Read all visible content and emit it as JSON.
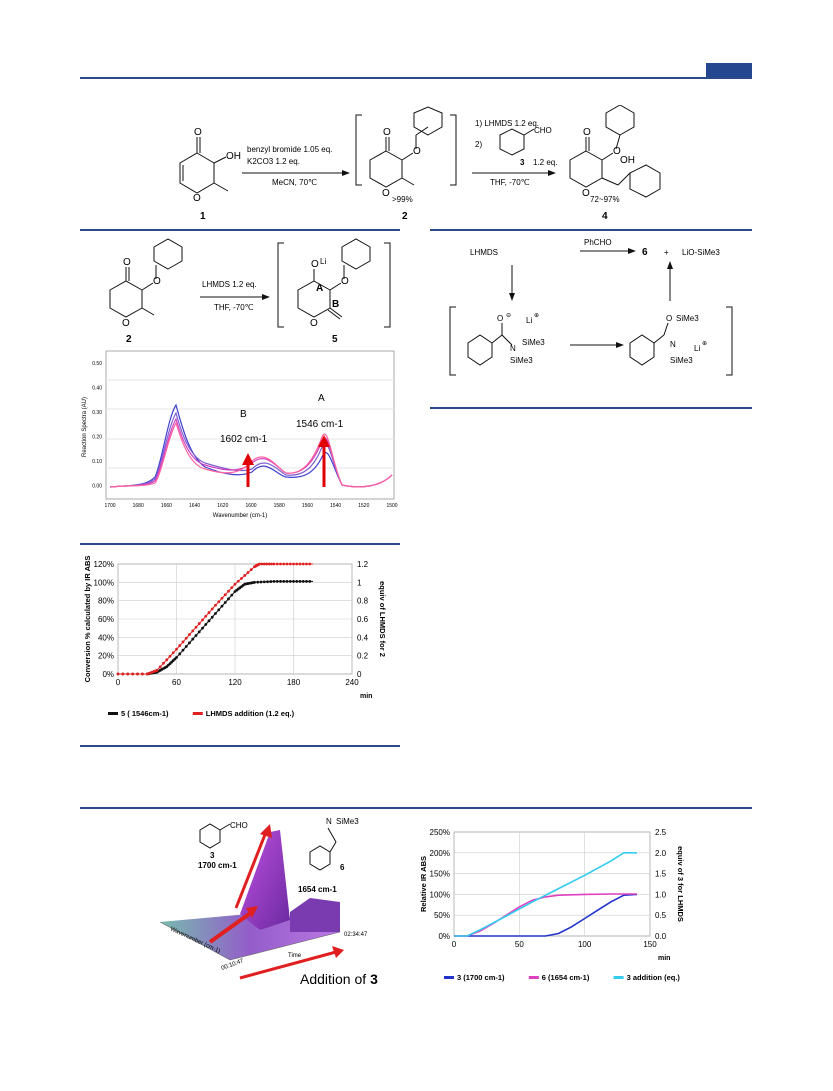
{
  "scheme1": {
    "reagent1_line1": "benzyl bromide 1.05 eq.",
    "reagent1_line2": "K2CO3 1.2 eq.",
    "reagent1_line3": "MeCN, 70℃",
    "reagent2_line1": "1) LHMDS 1.2 eq.",
    "reagent2_cho": "CHO",
    "reagent2_step2": "2)",
    "reagent2_line2a": "3",
    "reagent2_line2b": "1.2 eq.",
    "reagent2_line3": "THF, -70℃",
    "oh1": "OH",
    "oh2": "OH",
    "yield2": ">99%",
    "yield4": "72~97%",
    "cmpd1": "1",
    "cmpd2": "2",
    "cmpd4": "4"
  },
  "scheme2": {
    "reagent_line1": "LHMDS 1.2 eq.",
    "reagent_line2": "THF, -70℃",
    "cmpd2": "2",
    "cmpd5": "5",
    "li": "Li",
    "label_a": "A",
    "label_b": "B"
  },
  "mechanism": {
    "lhmds": "LHMDS",
    "phcho": "PhCHO",
    "product6": "6",
    "plus": "+",
    "byproduct": "LiO-SiMe3",
    "li_plus1": "Li",
    "li_plus2": "Li",
    "sime3_1": "SiMe3",
    "sime3_2": "SiMe3",
    "sime3_3": "SiMe3",
    "sime3_4": "SiMe3",
    "n1": "N",
    "n2": "N",
    "o1": "O",
    "o2": "O"
  },
  "ir_spectrum": {
    "xlabel": "Wavenumber (cm-1)",
    "ylabel": "Reaction Spectra (AU)",
    "peak_b_label": "B",
    "peak_b_value": "1602 cm-1",
    "peak_a_label": "A",
    "peak_a_value": "1546 cm-1",
    "xticks": [
      "1700",
      "1680",
      "1660",
      "1640",
      "1620",
      "1600",
      "1580",
      "1560",
      "1540",
      "1520",
      "1500"
    ],
    "yticks": [
      "0.50",
      "0.40",
      "0.30",
      "0.20",
      "0.10",
      "0.00"
    ]
  },
  "chart_data": [
    {
      "type": "line",
      "title": "",
      "xlabel": "min",
      "ylabel": "Conversion % calculated by IR ABS",
      "y2label": "equiv of LHMDS for 2",
      "xlim": [
        0,
        240
      ],
      "ylim": [
        0,
        120
      ],
      "y2lim": [
        0,
        1.2
      ],
      "xticks": [
        "0",
        "60",
        "120",
        "180",
        "240"
      ],
      "yticks": [
        "0%",
        "20%",
        "40%",
        "60%",
        "80%",
        "100%",
        "120%"
      ],
      "y2ticks": [
        "0",
        "0.2",
        "0.4",
        "0.6",
        "0.8",
        "1",
        "1.2"
      ],
      "legend": "bottom",
      "series": [
        {
          "name": "5 ( 1546cm-1)",
          "color": "#111111",
          "axis": "left",
          "x": [
            0,
            30,
            40,
            50,
            60,
            80,
            100,
            120,
            130,
            140,
            160,
            180,
            200
          ],
          "y": [
            0,
            0,
            2,
            8,
            18,
            42,
            66,
            90,
            98,
            100,
            101,
            101,
            101
          ]
        },
        {
          "name": "LHMDS addition (1.2 eq.)",
          "color": "#e02020",
          "axis": "right",
          "x": [
            0,
            30,
            40,
            60,
            80,
            100,
            120,
            140,
            145,
            160,
            180,
            200
          ],
          "y": [
            0,
            0,
            0.04,
            0.27,
            0.51,
            0.75,
            0.98,
            1.17,
            1.2,
            1.2,
            1.2,
            1.2
          ]
        }
      ]
    },
    {
      "type": "line",
      "title": "",
      "xlabel": "min",
      "ylabel": "Relative IR ABS",
      "y2label": "equiv of 3 for LHMDS",
      "xlim": [
        0,
        150
      ],
      "ylim": [
        0,
        250
      ],
      "y2lim": [
        0,
        2.5
      ],
      "xticks": [
        "0",
        "50",
        "100",
        "150"
      ],
      "yticks": [
        "0%",
        "50%",
        "100%",
        "150%",
        "200%",
        "250%"
      ],
      "y2ticks": [
        "0.0",
        "0.5",
        "1.0",
        "1.5",
        "2.0",
        "2.5"
      ],
      "legend": "bottom",
      "series": [
        {
          "name": "3 (1700 cm-1)",
          "color": "#2233cc",
          "axis": "left",
          "x": [
            0,
            20,
            40,
            60,
            70,
            80,
            90,
            100,
            110,
            120,
            130,
            140
          ],
          "y": [
            0,
            0,
            0,
            0,
            0,
            6,
            22,
            42,
            62,
            82,
            98,
            100
          ]
        },
        {
          "name": "6 (1654 cm-1)",
          "color": "#e040c0",
          "axis": "left",
          "x": [
            0,
            10,
            20,
            30,
            40,
            50,
            60,
            70,
            80,
            100,
            120,
            140
          ],
          "y": [
            0,
            0,
            12,
            30,
            50,
            70,
            86,
            94,
            98,
            100,
            101,
            101
          ]
        },
        {
          "name": "3 addition (eq.)",
          "color": "#33ccee",
          "axis": "right",
          "x": [
            0,
            10,
            20,
            40,
            60,
            80,
            100,
            120,
            130,
            140
          ],
          "y": [
            0,
            0,
            0.15,
            0.48,
            0.82,
            1.14,
            1.46,
            1.8,
            2.0,
            2.0
          ]
        }
      ]
    }
  ],
  "surface3d": {
    "cho": "CHO",
    "cmpd3": "3",
    "wn3": "1700 cm-1",
    "cmpd6": "6",
    "wn6": "1654 cm-1",
    "sime3": "SiMe3",
    "n": "N",
    "addition_prefix": "Addition of ",
    "addition_cmpd": "3",
    "axis_time": "Time",
    "axis_wn": "Wavenumber (cm-1)",
    "time1": "02:34:47",
    "time2": "00:10:47"
  }
}
